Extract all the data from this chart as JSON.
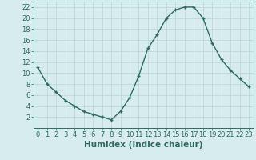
{
  "x": [
    0,
    1,
    2,
    3,
    4,
    5,
    6,
    7,
    8,
    9,
    10,
    11,
    12,
    13,
    14,
    15,
    16,
    17,
    18,
    19,
    20,
    21,
    22,
    23
  ],
  "y": [
    11,
    8,
    6.5,
    5,
    4,
    3,
    2.5,
    2,
    1.5,
    3,
    5.5,
    9.5,
    14.5,
    17,
    20,
    21.5,
    22,
    22,
    20,
    15.5,
    12.5,
    10.5,
    9,
    7.5
  ],
  "xlabel": "Humidex (Indice chaleur)",
  "xlim": [
    -0.5,
    23.5
  ],
  "ylim": [
    0,
    23
  ],
  "yticks": [
    2,
    4,
    6,
    8,
    10,
    12,
    14,
    16,
    18,
    20,
    22
  ],
  "xticks": [
    0,
    1,
    2,
    3,
    4,
    5,
    6,
    7,
    8,
    9,
    10,
    11,
    12,
    13,
    14,
    15,
    16,
    17,
    18,
    19,
    20,
    21,
    22,
    23
  ],
  "line_color": "#2e6b5e",
  "marker": "+",
  "bg_color": "#d6ecee",
  "grid_color": "#b8d4d8",
  "axis_color": "#2e6b5e",
  "xlabel_fontsize": 7.5,
  "tick_fontsize": 6
}
